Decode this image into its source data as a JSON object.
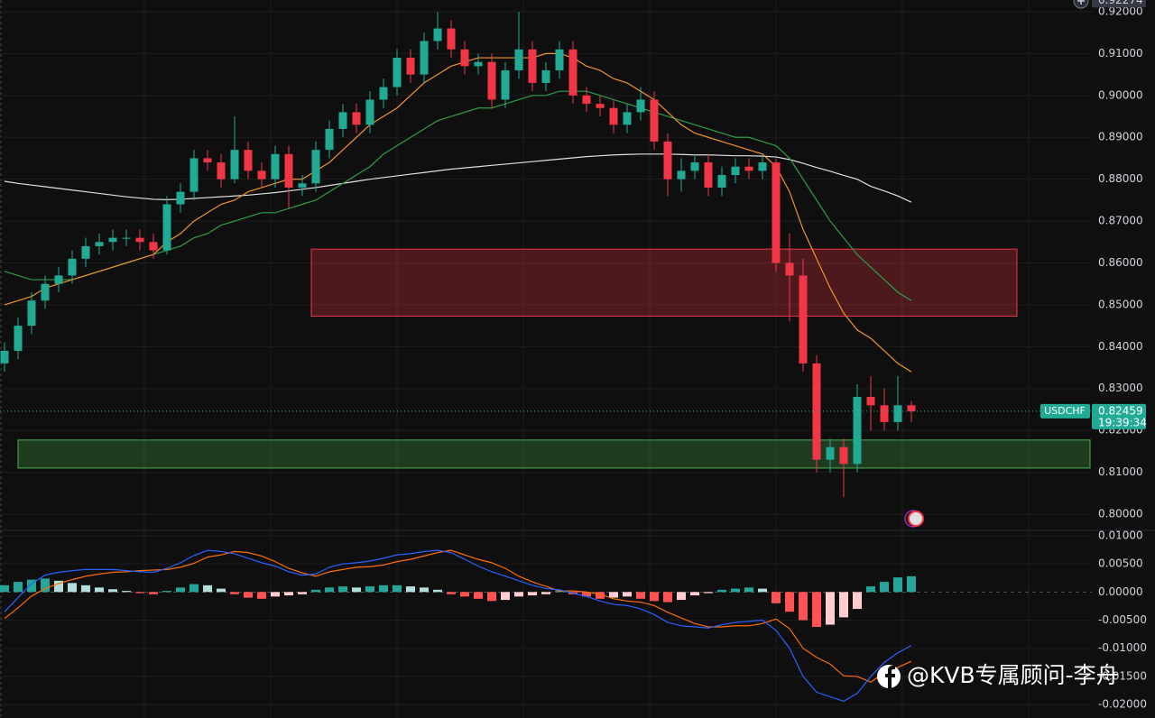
{
  "chart_data": [
    {
      "type": "candlestick",
      "symbol": "USDCHF",
      "last_price": 0.82459,
      "countdown": "19:39:34",
      "crosshair_price": 0.92274,
      "up_color": "#22ab94",
      "down_color": "#f23645",
      "open": [
        0.836,
        0.839,
        0.845,
        0.851,
        0.855,
        0.857,
        0.861,
        0.864,
        0.865,
        0.866,
        0.866,
        0.865,
        0.863,
        0.874,
        0.877,
        0.885,
        0.884,
        0.88,
        0.887,
        0.882,
        0.88,
        0.886,
        0.878,
        0.879,
        0.887,
        0.892,
        0.896,
        0.893,
        0.899,
        0.902,
        0.909,
        0.905,
        0.913,
        0.916,
        0.911,
        0.907,
        0.908,
        0.899,
        0.906,
        0.911,
        0.903,
        0.906,
        0.911,
        0.9,
        0.898,
        0.897,
        0.893,
        0.896,
        0.899,
        0.889,
        0.88,
        0.882,
        0.884,
        0.878,
        0.881,
        0.883,
        0.882,
        0.884,
        0.86,
        0.857,
        0.836,
        0.813,
        0.816,
        0.812,
        0.828,
        0.826,
        0.822,
        0.826
      ],
      "high": [
        0.841,
        0.847,
        0.853,
        0.857,
        0.859,
        0.863,
        0.866,
        0.867,
        0.868,
        0.868,
        0.868,
        0.867,
        0.876,
        0.879,
        0.887,
        0.887,
        0.886,
        0.895,
        0.889,
        0.884,
        0.888,
        0.888,
        0.881,
        0.889,
        0.894,
        0.898,
        0.898,
        0.901,
        0.904,
        0.911,
        0.911,
        0.915,
        0.92,
        0.918,
        0.913,
        0.91,
        0.91,
        0.908,
        0.92,
        0.913,
        0.908,
        0.913,
        0.913,
        0.902,
        0.9,
        0.899,
        0.898,
        0.902,
        0.901,
        0.891,
        0.885,
        0.886,
        0.886,
        0.883,
        0.885,
        0.885,
        0.886,
        0.885,
        0.867,
        0.861,
        0.838,
        0.818,
        0.818,
        0.831,
        0.833,
        0.83,
        0.833,
        0.827
      ],
      "low": [
        0.834,
        0.837,
        0.843,
        0.849,
        0.853,
        0.855,
        0.859,
        0.862,
        0.863,
        0.864,
        0.863,
        0.861,
        0.862,
        0.872,
        0.875,
        0.882,
        0.878,
        0.879,
        0.88,
        0.878,
        0.878,
        0.873,
        0.876,
        0.877,
        0.885,
        0.89,
        0.891,
        0.891,
        0.897,
        0.9,
        0.903,
        0.903,
        0.911,
        0.909,
        0.905,
        0.905,
        0.897,
        0.897,
        0.904,
        0.901,
        0.901,
        0.904,
        0.898,
        0.896,
        0.895,
        0.891,
        0.891,
        0.894,
        0.887,
        0.876,
        0.877,
        0.88,
        0.876,
        0.876,
        0.879,
        0.88,
        0.88,
        0.858,
        0.846,
        0.834,
        0.81,
        0.81,
        0.804,
        0.81,
        0.82,
        0.82,
        0.82,
        0.822
      ],
      "close": [
        0.839,
        0.845,
        0.851,
        0.855,
        0.857,
        0.861,
        0.864,
        0.865,
        0.866,
        0.866,
        0.865,
        0.863,
        0.874,
        0.877,
        0.885,
        0.884,
        0.88,
        0.887,
        0.882,
        0.88,
        0.886,
        0.878,
        0.879,
        0.887,
        0.892,
        0.896,
        0.893,
        0.899,
        0.902,
        0.909,
        0.905,
        0.913,
        0.916,
        0.911,
        0.907,
        0.908,
        0.899,
        0.906,
        0.911,
        0.903,
        0.906,
        0.911,
        0.9,
        0.898,
        0.897,
        0.893,
        0.896,
        0.899,
        0.889,
        0.88,
        0.882,
        0.884,
        0.878,
        0.881,
        0.883,
        0.882,
        0.884,
        0.86,
        0.857,
        0.836,
        0.813,
        0.816,
        0.812,
        0.828,
        0.826,
        0.822,
        0.826,
        0.82459
      ],
      "moving_averages": [
        {
          "color": "#e0e0e0",
          "values": [
            0.8795,
            0.879,
            0.8786,
            0.8782,
            0.8778,
            0.8774,
            0.877,
            0.8766,
            0.8762,
            0.8758,
            0.8755,
            0.8752,
            0.8751,
            0.8752,
            0.8754,
            0.8756,
            0.8758,
            0.876,
            0.8762,
            0.8765,
            0.8768,
            0.8772,
            0.8776,
            0.878,
            0.8785,
            0.879,
            0.8795,
            0.88,
            0.8804,
            0.8808,
            0.8812,
            0.8816,
            0.882,
            0.8824,
            0.8827,
            0.883,
            0.8833,
            0.8836,
            0.8839,
            0.8842,
            0.8845,
            0.8848,
            0.8851,
            0.8854,
            0.8856,
            0.8858,
            0.8859,
            0.886,
            0.886,
            0.886,
            0.8859,
            0.8858,
            0.8858,
            0.8857,
            0.8856,
            0.8856,
            0.8855,
            0.8853,
            0.8847,
            0.8838,
            0.8828,
            0.8819,
            0.8809,
            0.88,
            0.8783,
            0.8772,
            0.876,
            0.8745
          ]
        },
        {
          "color": "#2e9e48",
          "values": [
            0.858,
            0.857,
            0.856,
            0.856,
            0.856,
            0.856,
            0.857,
            0.858,
            0.859,
            0.86,
            0.861,
            0.862,
            0.863,
            0.864,
            0.866,
            0.867,
            0.869,
            0.87,
            0.871,
            0.872,
            0.872,
            0.873,
            0.874,
            0.875,
            0.877,
            0.879,
            0.881,
            0.883,
            0.886,
            0.888,
            0.89,
            0.892,
            0.894,
            0.895,
            0.896,
            0.897,
            0.897,
            0.898,
            0.899,
            0.9,
            0.9,
            0.901,
            0.901,
            0.901,
            0.9,
            0.899,
            0.898,
            0.897,
            0.896,
            0.895,
            0.894,
            0.893,
            0.892,
            0.891,
            0.89,
            0.89,
            0.889,
            0.888,
            0.885,
            0.88,
            0.875,
            0.87,
            0.866,
            0.862,
            0.859,
            0.856,
            0.853,
            0.851
          ]
        },
        {
          "color": "#f0932b",
          "values": [
            0.85,
            0.851,
            0.852,
            0.854,
            0.855,
            0.856,
            0.857,
            0.858,
            0.859,
            0.86,
            0.861,
            0.862,
            0.865,
            0.867,
            0.87,
            0.872,
            0.874,
            0.875,
            0.877,
            0.878,
            0.879,
            0.88,
            0.88,
            0.882,
            0.884,
            0.887,
            0.89,
            0.893,
            0.895,
            0.897,
            0.9,
            0.903,
            0.905,
            0.907,
            0.908,
            0.909,
            0.909,
            0.909,
            0.909,
            0.909,
            0.91,
            0.91,
            0.909,
            0.907,
            0.906,
            0.904,
            0.903,
            0.901,
            0.899,
            0.896,
            0.893,
            0.891,
            0.89,
            0.889,
            0.888,
            0.887,
            0.886,
            0.883,
            0.877,
            0.868,
            0.861,
            0.854,
            0.848,
            0.844,
            0.842,
            0.839,
            0.836,
            0.834
          ]
        }
      ],
      "zones": [
        {
          "from": 0.8633,
          "to": 0.8473,
          "color": "#f23645"
        },
        {
          "from": 0.8177,
          "to": 0.811,
          "color": "#4caf50"
        }
      ],
      "ylim": [
        0.79612,
        0.9228
      ],
      "yticks": [
        {
          "value": 0.8,
          "label": "0.80000"
        },
        {
          "value": 0.81,
          "label": "0.81000"
        },
        {
          "value": 0.82,
          "label": "0.82000"
        },
        {
          "value": 0.83,
          "label": "0.83000"
        },
        {
          "value": 0.84,
          "label": "0.84000"
        },
        {
          "value": 0.85,
          "label": "0.85000"
        },
        {
          "value": 0.86,
          "label": "0.86000"
        },
        {
          "value": 0.87,
          "label": "0.87000"
        },
        {
          "value": 0.88,
          "label": "0.88000"
        },
        {
          "value": 0.89,
          "label": "0.89000"
        },
        {
          "value": 0.9,
          "label": "0.90000"
        },
        {
          "value": 0.91,
          "label": "0.91000"
        },
        {
          "value": 0.92,
          "label": "0.92000"
        }
      ]
    },
    {
      "type": "macd",
      "histogram_colors": {
        "pos_up": "#26a69a",
        "pos_down": "#b2dfdb",
        "neg_down": "#ff5252",
        "neg_up": "#ffcdd2"
      },
      "histogram": [
        0.0012,
        0.0018,
        0.0022,
        0.0024,
        0.002,
        0.0016,
        0.0012,
        0.0008,
        0.0005,
        0.0002,
        -0.0002,
        -0.0004,
        0.0002,
        0.0008,
        0.0014,
        0.0012,
        0.0006,
        -0.0004,
        -0.001,
        -0.0012,
        -0.0008,
        -0.0006,
        -0.0004,
        0.0004,
        0.0008,
        0.001,
        0.0008,
        0.001,
        0.0012,
        0.0012,
        0.001,
        0.0008,
        0.0004,
        -0.0004,
        -0.0008,
        -0.0012,
        -0.0016,
        -0.0014,
        -0.0008,
        -0.0006,
        -0.0004,
        0.0002,
        -0.0004,
        -0.0008,
        -0.0012,
        -0.001,
        -0.0008,
        -0.0012,
        -0.0016,
        -0.0018,
        -0.0014,
        -0.0006,
        -0.0002,
        0.0004,
        0.0006,
        0.0008,
        0.0006,
        -0.002,
        -0.0035,
        -0.005,
        -0.0062,
        -0.0058,
        -0.0045,
        -0.003,
        0.001,
        0.0018,
        0.0026,
        0.0028
      ],
      "macd": {
        "color": "#2962ff",
        "values": [
          -0.0035,
          -0.001,
          0.0015,
          0.003,
          0.0035,
          0.0038,
          0.004,
          0.004,
          0.004,
          0.0038,
          0.0036,
          0.0035,
          0.0042,
          0.0052,
          0.0065,
          0.0074,
          0.0072,
          0.0068,
          0.006,
          0.0052,
          0.0046,
          0.0036,
          0.003,
          0.0032,
          0.0044,
          0.005,
          0.0052,
          0.0055,
          0.006,
          0.0066,
          0.0068,
          0.0072,
          0.0074,
          0.007,
          0.0058,
          0.0046,
          0.0036,
          0.0028,
          0.002,
          0.0012,
          0.0006,
          0.0004,
          -0.0002,
          -0.0008,
          -0.0016,
          -0.0022,
          -0.0024,
          -0.003,
          -0.004,
          -0.0054,
          -0.006,
          -0.0062,
          -0.0064,
          -0.0058,
          -0.0054,
          -0.0052,
          -0.005,
          -0.0068,
          -0.01,
          -0.015,
          -0.0178,
          -0.0186,
          -0.0194,
          -0.018,
          -0.015,
          -0.0125,
          -0.0108,
          -0.0095
        ]
      },
      "signal": {
        "color": "#ff6d00",
        "values": [
          -0.0047,
          -0.0028,
          -0.0007,
          0.0006,
          0.0015,
          0.0022,
          0.0028,
          0.0032,
          0.0035,
          0.0036,
          0.0038,
          0.0039,
          0.004,
          0.0044,
          0.0051,
          0.0062,
          0.0066,
          0.0072,
          0.007,
          0.0064,
          0.0054,
          0.0042,
          0.0034,
          0.0028,
          0.0036,
          0.004,
          0.0044,
          0.0045,
          0.0048,
          0.0054,
          0.0058,
          0.0064,
          0.007,
          0.0074,
          0.0066,
          0.0058,
          0.0052,
          0.0042,
          0.0028,
          0.0018,
          0.001,
          0.0002,
          0.0002,
          0.0,
          -0.0004,
          -0.0012,
          -0.0016,
          -0.0018,
          -0.0024,
          -0.0036,
          -0.0046,
          -0.0056,
          -0.0062,
          -0.0062,
          -0.006,
          -0.006,
          -0.0056,
          -0.0048,
          -0.0065,
          -0.01,
          -0.0116,
          -0.0128,
          -0.0149,
          -0.015,
          -0.016,
          -0.0143,
          -0.0134,
          -0.0123
        ]
      },
      "ylim": [
        -0.02238,
        0.01095
      ],
      "yticks": [
        {
          "value": 0.01,
          "label": "0.01000"
        },
        {
          "value": 0.005,
          "label": "0.00500"
        },
        {
          "value": 0,
          "label": "0.00000"
        },
        {
          "value": -0.005,
          "label": "-0.00500"
        },
        {
          "value": -0.01,
          "label": "-0.01000"
        },
        {
          "value": -0.015,
          "label": "-0.01500"
        },
        {
          "value": -0.02,
          "label": "-0.02000"
        }
      ]
    }
  ],
  "watermark": "@KVB专属顾问-李舟"
}
